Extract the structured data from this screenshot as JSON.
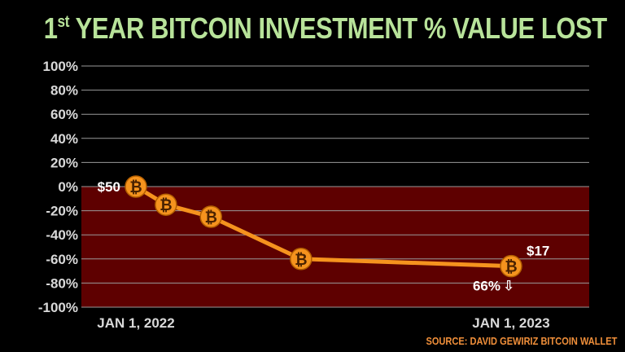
{
  "title_main": "YEAR BITCOIN INVESTMENT % VALUE LOST",
  "title_prefix": "1",
  "title_sup": "st",
  "source": "SOURCE: DAVID GEWIRIZ BITCOIN WALLET",
  "colors": {
    "title": "#b8e39a",
    "line": "#f5931e",
    "loss_area": "#5e0000",
    "grid": "#9a9a9a",
    "source": "#f08f3a"
  },
  "chart_data": {
    "type": "line",
    "title": "1st YEAR BITCOIN INVESTMENT % VALUE LOST",
    "ylim": [
      -100,
      100
    ],
    "yticks": [
      100,
      80,
      60,
      40,
      20,
      0,
      -20,
      -40,
      -60,
      -80,
      -100
    ],
    "ytick_labels": [
      "100%",
      "80%",
      "60%",
      "40%",
      "20%",
      "0%",
      "-20%",
      "-40%",
      "-60%",
      "-80%",
      "-100%"
    ],
    "x_labels": [
      "JAN 1, 2022",
      "JAN 1, 2023"
    ],
    "grid": true,
    "shaded_region": {
      "from": -100,
      "to": 0
    },
    "marker_icon": "bitcoin-icon",
    "points": [
      {
        "x": 0.0,
        "y": 0
      },
      {
        "x": 0.08,
        "y": -15
      },
      {
        "x": 0.2,
        "y": -25
      },
      {
        "x": 0.44,
        "y": -60
      },
      {
        "x": 1.0,
        "y": -66
      }
    ],
    "annotations": {
      "start_value": "$50",
      "end_value": "$17",
      "loss_pct": "66%",
      "loss_arrow": "⇩"
    }
  }
}
